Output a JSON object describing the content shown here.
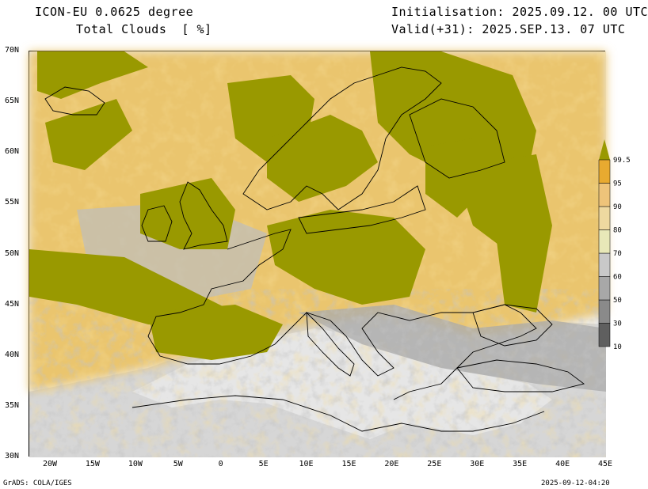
{
  "header": {
    "model": "ICON-EU 0.0625 degree",
    "variable": "Total Clouds  [ %]",
    "init": "Initialisation: 2025.09.12. 00 UTC",
    "valid": "Valid(+31): 2025.SEP.13. 07 UTC"
  },
  "lat_labels": [
    "70N",
    "65N",
    "60N",
    "55N",
    "50N",
    "45N",
    "40N",
    "35N",
    "30N"
  ],
  "lon_labels": [
    "20W",
    "15W",
    "10W",
    "5W",
    "0",
    "5E",
    "10E",
    "15E",
    "20E",
    "25E",
    "30E",
    "35E",
    "40E",
    "45E"
  ],
  "colorbar": {
    "levels": [
      "10",
      "30",
      "50",
      "60",
      "70",
      "80",
      "90",
      "95",
      "99.5"
    ],
    "colors": [
      "#5f5f5f",
      "#8a8a8a",
      "#a8a8a8",
      "#c9c9c9",
      "#e8e8b8",
      "#eed9a0",
      "#eec47a",
      "#e8aa30",
      "#999900"
    ]
  },
  "colors": {
    "overcast": "#999900",
    "land_clear": "#d9d9d9",
    "sea_clear": "#f4f4f4",
    "coast": "#000000"
  },
  "footer": {
    "left": "GrADS: COLA/IGES",
    "right": "2025-09-12-04:20"
  }
}
